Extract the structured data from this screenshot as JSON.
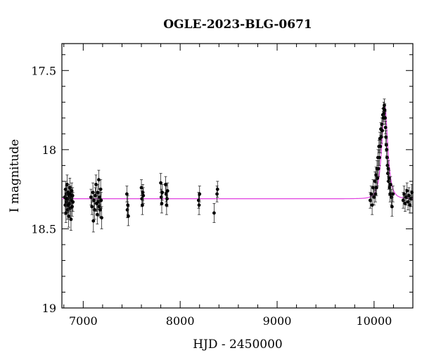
{
  "chart_data": {
    "type": "scatter",
    "title": "OGLE-2023-BLG-0671",
    "xlabel": "HJD - 2450000",
    "ylabel": "I magnitude",
    "xlim": [
      6780,
      10400
    ],
    "ylim": [
      19.0,
      17.33
    ],
    "y_inverted": true,
    "x_ticks": [
      7000,
      8000,
      9000,
      10000
    ],
    "x_tick_labels": [
      "7000",
      "8000",
      "9000",
      "10000"
    ],
    "y_ticks": [
      17.5,
      18.0,
      18.5,
      19.0
    ],
    "y_tick_labels": [
      "17.5",
      "18",
      "18.5",
      "19"
    ],
    "grid": false,
    "legend": "none",
    "series": [
      {
        "kind": "points",
        "color": "#000000",
        "points": [
          [
            6810,
            18.3,
            0.05
          ],
          [
            6815,
            18.35,
            0.06
          ],
          [
            6818,
            18.25,
            0.05
          ],
          [
            6822,
            18.4,
            0.06
          ],
          [
            6826,
            18.28,
            0.05
          ],
          [
            6830,
            18.33,
            0.05
          ],
          [
            6834,
            18.22,
            0.06
          ],
          [
            6838,
            18.38,
            0.06
          ],
          [
            6842,
            18.31,
            0.05
          ],
          [
            6846,
            18.27,
            0.05
          ],
          [
            6850,
            18.42,
            0.07
          ],
          [
            6854,
            18.29,
            0.05
          ],
          [
            6858,
            18.34,
            0.05
          ],
          [
            6862,
            18.24,
            0.06
          ],
          [
            6866,
            18.37,
            0.06
          ],
          [
            6870,
            18.3,
            0.05
          ],
          [
            6874,
            18.44,
            0.07
          ],
          [
            6878,
            18.32,
            0.05
          ],
          [
            6882,
            18.26,
            0.05
          ],
          [
            6886,
            18.36,
            0.06
          ],
          [
            6890,
            18.29,
            0.05
          ],
          [
            6894,
            18.33,
            0.06
          ],
          [
            6825,
            18.31,
            0.05
          ],
          [
            6845,
            18.35,
            0.05
          ],
          [
            6865,
            18.28,
            0.05
          ],
          [
            7080,
            18.3,
            0.05
          ],
          [
            7090,
            18.36,
            0.05
          ],
          [
            7100,
            18.27,
            0.06
          ],
          [
            7105,
            18.45,
            0.07
          ],
          [
            7110,
            18.32,
            0.05
          ],
          [
            7118,
            18.38,
            0.06
          ],
          [
            7125,
            18.29,
            0.05
          ],
          [
            7132,
            18.22,
            0.06
          ],
          [
            7138,
            18.34,
            0.05
          ],
          [
            7145,
            18.41,
            0.06
          ],
          [
            7150,
            18.27,
            0.05
          ],
          [
            7155,
            18.33,
            0.05
          ],
          [
            7160,
            18.19,
            0.06
          ],
          [
            7165,
            18.36,
            0.06
          ],
          [
            7170,
            18.3,
            0.05
          ],
          [
            7175,
            18.38,
            0.05
          ],
          [
            7180,
            18.25,
            0.06
          ],
          [
            7185,
            18.32,
            0.05
          ],
          [
            7190,
            18.43,
            0.07
          ],
          [
            7450,
            18.28,
            0.05
          ],
          [
            7455,
            18.38,
            0.05
          ],
          [
            7460,
            18.35,
            0.06
          ],
          [
            7465,
            18.42,
            0.06
          ],
          [
            7600,
            18.24,
            0.05
          ],
          [
            7605,
            18.31,
            0.05
          ],
          [
            7610,
            18.35,
            0.06
          ],
          [
            7615,
            18.27,
            0.05
          ],
          [
            7620,
            18.29,
            0.05
          ],
          [
            7800,
            18.21,
            0.06
          ],
          [
            7805,
            18.3,
            0.05
          ],
          [
            7810,
            18.34,
            0.06
          ],
          [
            7815,
            18.27,
            0.05
          ],
          [
            7850,
            18.22,
            0.05
          ],
          [
            7855,
            18.28,
            0.05
          ],
          [
            7860,
            18.35,
            0.06
          ],
          [
            7865,
            18.31,
            0.05
          ],
          [
            7870,
            18.26,
            0.05
          ],
          [
            8190,
            18.32,
            0.05
          ],
          [
            8195,
            18.35,
            0.06
          ],
          [
            8200,
            18.28,
            0.05
          ],
          [
            8350,
            18.4,
            0.06
          ],
          [
            8380,
            18.28,
            0.05
          ],
          [
            8385,
            18.25,
            0.05
          ],
          [
            9960,
            18.32,
            0.05
          ],
          [
            9970,
            18.28,
            0.05
          ],
          [
            9980,
            18.35,
            0.06
          ],
          [
            9990,
            18.24,
            0.05
          ],
          [
            10000,
            18.3,
            0.05
          ],
          [
            10010,
            18.2,
            0.06
          ],
          [
            10015,
            18.28,
            0.05
          ],
          [
            10020,
            18.16,
            0.05
          ],
          [
            10025,
            18.24,
            0.05
          ],
          [
            10030,
            18.12,
            0.05
          ],
          [
            10035,
            18.18,
            0.05
          ],
          [
            10040,
            18.05,
            0.05
          ],
          [
            10045,
            18.12,
            0.05
          ],
          [
            10050,
            17.98,
            0.04
          ],
          [
            10055,
            18.05,
            0.05
          ],
          [
            10060,
            17.93,
            0.04
          ],
          [
            10065,
            17.98,
            0.04
          ],
          [
            10070,
            17.87,
            0.04
          ],
          [
            10075,
            17.92,
            0.04
          ],
          [
            10080,
            17.84,
            0.04
          ],
          [
            10085,
            17.88,
            0.04
          ],
          [
            10090,
            17.78,
            0.04
          ],
          [
            10095,
            17.8,
            0.04
          ],
          [
            10100,
            17.74,
            0.04
          ],
          [
            10103,
            17.77,
            0.04
          ],
          [
            10106,
            17.72,
            0.04
          ],
          [
            10110,
            17.75,
            0.04
          ],
          [
            10114,
            17.8,
            0.04
          ],
          [
            10118,
            17.86,
            0.04
          ],
          [
            10122,
            17.92,
            0.04
          ],
          [
            10126,
            17.97,
            0.04
          ],
          [
            10130,
            18.0,
            0.04
          ],
          [
            10134,
            18.05,
            0.05
          ],
          [
            10138,
            18.1,
            0.05
          ],
          [
            10142,
            18.15,
            0.05
          ],
          [
            10146,
            18.12,
            0.05
          ],
          [
            10150,
            18.2,
            0.05
          ],
          [
            10155,
            18.18,
            0.05
          ],
          [
            10160,
            18.24,
            0.05
          ],
          [
            10165,
            18.28,
            0.05
          ],
          [
            10170,
            18.22,
            0.05
          ],
          [
            10178,
            18.3,
            0.05
          ],
          [
            10185,
            18.36,
            0.06
          ],
          [
            10195,
            18.28,
            0.05
          ],
          [
            10300,
            18.32,
            0.05
          ],
          [
            10310,
            18.28,
            0.05
          ],
          [
            10320,
            18.34,
            0.05
          ],
          [
            10330,
            18.3,
            0.05
          ],
          [
            10340,
            18.26,
            0.05
          ],
          [
            10350,
            18.33,
            0.05
          ],
          [
            10360,
            18.29,
            0.05
          ],
          [
            10370,
            18.35,
            0.05
          ],
          [
            10380,
            18.31,
            0.05
          ],
          [
            10390,
            18.27,
            0.05
          ]
        ]
      },
      {
        "kind": "model",
        "color": "#e040e0",
        "baseline": 18.31,
        "peak_mag": 17.72,
        "t0": 10110,
        "tE": 45,
        "u0": 0.67
      }
    ]
  }
}
